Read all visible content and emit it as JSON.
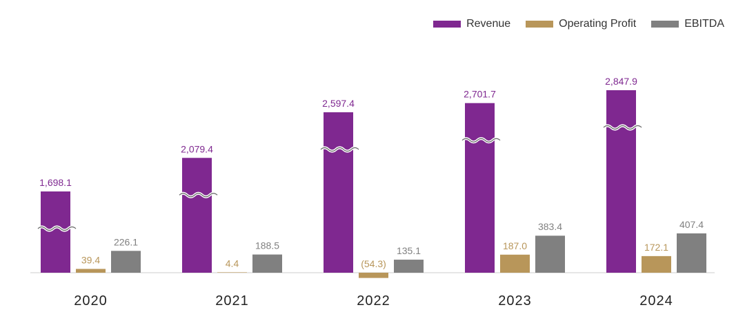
{
  "chart_data": {
    "type": "bar",
    "categories": [
      "2020",
      "2021",
      "2022",
      "2023",
      "2024"
    ],
    "series": [
      {
        "name": "Revenue",
        "color": "#7f2890",
        "values": [
          1698.1,
          2079.4,
          2597.4,
          2701.7,
          2847.9
        ],
        "labels": [
          "1,698.1",
          "2,079.4",
          "2,597.4",
          "2,701.7",
          "2,847.9"
        ],
        "axis_break": true
      },
      {
        "name": "Operating Profit",
        "color": "#b8965a",
        "values": [
          39.4,
          4.4,
          -54.3,
          187.0,
          172.1
        ],
        "labels": [
          "39.4",
          "4.4",
          "(54.3)",
          "187.0",
          "172.1"
        ]
      },
      {
        "name": "EBITDA",
        "color": "#808080",
        "values": [
          226.1,
          188.5,
          135.1,
          383.4,
          407.4
        ],
        "labels": [
          "226.1",
          "188.5",
          "135.1",
          "383.4",
          "407.4"
        ]
      }
    ],
    "legend_position": "top-right",
    "grid": false
  }
}
